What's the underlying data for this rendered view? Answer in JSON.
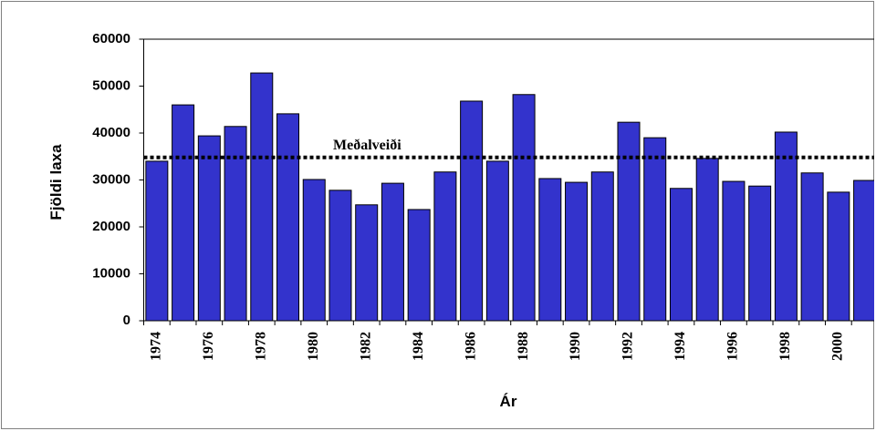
{
  "chart_data": {
    "type": "bar",
    "categories": [
      "1974",
      null,
      "1976",
      null,
      "1978",
      null,
      "1980",
      null,
      "1982",
      null,
      "1984",
      null,
      "1986",
      null,
      "1988",
      null,
      "1990",
      null,
      "1992",
      null,
      "1994",
      null,
      "1996",
      null,
      "1998",
      null,
      "2000",
      null
    ],
    "values": [
      34000,
      46000,
      39400,
      41400,
      52800,
      44100,
      30100,
      27800,
      24700,
      29300,
      23700,
      31700,
      46800,
      34000,
      48200,
      30300,
      29500,
      31700,
      42300,
      39000,
      28200,
      34600,
      29700,
      28700,
      40200,
      31500,
      27400,
      29900
    ],
    "color": "#3333cc",
    "y_label": "Fjöldi laxa",
    "x_label": "Ár",
    "ylim": [
      0,
      60000
    ],
    "yticks": [
      0,
      10000,
      20000,
      30000,
      40000,
      50000,
      60000
    ],
    "reference_line": {
      "label": "Meðalveiði",
      "value": 34800
    }
  }
}
